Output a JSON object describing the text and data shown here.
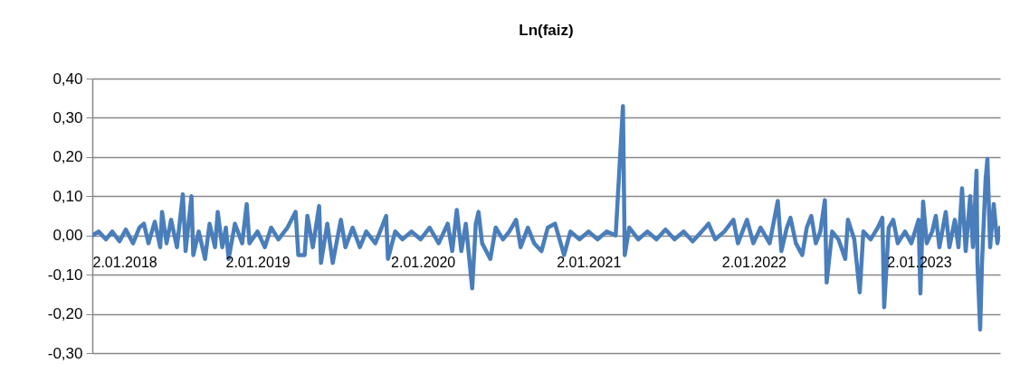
{
  "chart_data": {
    "type": "line",
    "title": "Ln(faiz)",
    "xlim": [
      "2018-01-02",
      "2023-06-30"
    ],
    "xticks": [
      {
        "value": "2018-01-02",
        "label": "2.01.2018"
      },
      {
        "value": "2019-01-02",
        "label": "2.01.2019"
      },
      {
        "value": "2020-01-02",
        "label": "2.01.2020"
      },
      {
        "value": "2021-01-02",
        "label": "2.01.2021"
      },
      {
        "value": "2022-01-02",
        "label": "2.01.2022"
      },
      {
        "value": "2023-01-02",
        "label": "2.01.2023"
      }
    ],
    "ylim": [
      -0.3,
      0.4
    ],
    "yticks": [
      {
        "value": -0.3,
        "label": "-0,30"
      },
      {
        "value": -0.2,
        "label": "-0,20"
      },
      {
        "value": -0.1,
        "label": "-0,10"
      },
      {
        "value": 0,
        "label": "0,00"
      },
      {
        "value": 0.1,
        "label": "0,10"
      },
      {
        "value": 0.2,
        "label": "0,20"
      },
      {
        "value": 0.3,
        "label": "0,30"
      },
      {
        "value": 0.4,
        "label": "0,40"
      }
    ],
    "grid": "y",
    "marker": "none",
    "line_style": "solid",
    "x": [
      "2018-01-02",
      "2018-01-16",
      "2018-02-01",
      "2018-02-15",
      "2018-03-03",
      "2018-03-17",
      "2018-04-02",
      "2018-04-16",
      "2018-04-26",
      "2018-05-06",
      "2018-05-20",
      "2018-06-01",
      "2018-06-05",
      "2018-06-15",
      "2018-06-25",
      "2018-07-08",
      "2018-07-21",
      "2018-07-27",
      "2018-08-09",
      "2018-08-13",
      "2018-08-25",
      "2018-09-08",
      "2018-09-18",
      "2018-09-30",
      "2018-10-06",
      "2018-10-16",
      "2018-10-24",
      "2018-10-30",
      "2018-11-13",
      "2018-11-29",
      "2018-12-09",
      "2018-12-15",
      "2019-01-02",
      "2019-01-18",
      "2019-02-01",
      "2019-02-17",
      "2019-03-09",
      "2019-03-27",
      "2019-04-02",
      "2019-04-16",
      "2019-04-22",
      "2019-05-04",
      "2019-05-18",
      "2019-05-22",
      "2019-06-05",
      "2019-06-17",
      "2019-07-05",
      "2019-07-15",
      "2019-07-31",
      "2019-08-16",
      "2019-08-30",
      "2019-09-19",
      "2019-10-03",
      "2019-10-13",
      "2019-10-17",
      "2019-11-02",
      "2019-11-18",
      "2019-12-08",
      "2019-12-28",
      "2020-01-17",
      "2020-02-06",
      "2020-02-26",
      "2020-03-07",
      "2020-03-17",
      "2020-03-27",
      "2020-04-06",
      "2020-04-20",
      "2020-04-28",
      "2020-05-04",
      "2020-05-12",
      "2020-05-30",
      "2020-06-11",
      "2020-06-27",
      "2020-07-11",
      "2020-07-26",
      "2020-08-05",
      "2020-08-21",
      "2020-09-04",
      "2020-09-20",
      "2020-10-04",
      "2020-10-20",
      "2020-10-30",
      "2020-11-09",
      "2020-11-23",
      "2020-12-13",
      "2021-01-02",
      "2021-01-22",
      "2021-02-11",
      "2021-03-03",
      "2021-03-19",
      "2021-03-23",
      "2021-04-02",
      "2021-04-22",
      "2021-05-12",
      "2021-06-01",
      "2021-06-21",
      "2021-07-11",
      "2021-07-31",
      "2021-08-20",
      "2021-09-09",
      "2021-09-24",
      "2021-10-09",
      "2021-10-29",
      "2021-11-18",
      "2021-11-28",
      "2021-12-18",
      "2022-01-01",
      "2022-01-17",
      "2022-02-06",
      "2022-02-24",
      "2022-03-04",
      "2022-03-16",
      "2022-03-24",
      "2022-04-05",
      "2022-04-19",
      "2022-04-29",
      "2022-05-09",
      "2022-05-19",
      "2022-05-29",
      "2022-06-08",
      "2022-06-12",
      "2022-06-24",
      "2022-07-08",
      "2022-07-23",
      "2022-07-29",
      "2022-08-12",
      "2022-08-24",
      "2022-09-01",
      "2022-09-17",
      "2022-10-03",
      "2022-10-13",
      "2022-10-17",
      "2022-10-27",
      "2022-11-06",
      "2022-11-16",
      "2022-12-02",
      "2022-12-16",
      "2023-01-01",
      "2023-01-05",
      "2023-01-11",
      "2023-01-19",
      "2023-01-31",
      "2023-02-08",
      "2023-02-16",
      "2023-03-02",
      "2023-03-10",
      "2023-03-22",
      "2023-03-30",
      "2023-04-07",
      "2023-04-15",
      "2023-04-25",
      "2023-05-01",
      "2023-05-09",
      "2023-05-11",
      "2023-05-17",
      "2023-05-21",
      "2023-05-29",
      "2023-06-02",
      "2023-06-08",
      "2023-06-16",
      "2023-06-24",
      "2023-06-30"
    ],
    "series": [
      {
        "color": "#4a7ebb",
        "values": [
          0.0,
          0.01,
          -0.01,
          0.01,
          -0.015,
          0.015,
          -0.02,
          0.02,
          0.03,
          -0.02,
          0.035,
          -0.03,
          0.06,
          -0.02,
          0.04,
          -0.03,
          0.105,
          -0.04,
          0.1,
          -0.05,
          0.01,
          -0.06,
          0.03,
          -0.03,
          0.06,
          -0.03,
          0.02,
          -0.06,
          0.03,
          -0.02,
          0.08,
          -0.02,
          0.01,
          -0.03,
          0.02,
          -0.01,
          0.02,
          0.06,
          -0.05,
          -0.05,
          0.05,
          -0.03,
          0.075,
          -0.07,
          0.03,
          -0.07,
          0.04,
          -0.03,
          0.02,
          -0.03,
          0.01,
          -0.02,
          0.02,
          0.05,
          -0.06,
          0.01,
          -0.01,
          0.01,
          -0.01,
          0.02,
          -0.02,
          0.03,
          -0.04,
          0.065,
          -0.04,
          0.03,
          -0.135,
          0.03,
          0.06,
          -0.02,
          -0.06,
          0.02,
          -0.01,
          0.01,
          0.04,
          -0.03,
          0.02,
          -0.02,
          -0.04,
          0.02,
          0.03,
          -0.01,
          -0.05,
          0.01,
          -0.01,
          0.01,
          -0.01,
          0.01,
          0.0,
          0.33,
          -0.05,
          0.02,
          -0.01,
          0.01,
          -0.01,
          0.015,
          -0.01,
          0.01,
          -0.015,
          0.01,
          0.03,
          -0.01,
          0.01,
          0.04,
          -0.02,
          0.04,
          -0.02,
          0.02,
          -0.02,
          0.088,
          -0.04,
          0.02,
          0.045,
          -0.02,
          -0.05,
          0.02,
          0.05,
          -0.02,
          0.01,
          0.09,
          -0.12,
          0.01,
          -0.01,
          -0.06,
          0.04,
          -0.01,
          -0.145,
          0.01,
          -0.01,
          0.02,
          0.045,
          -0.183,
          0.02,
          0.04,
          -0.02,
          0.01,
          -0.02,
          0.04,
          -0.148,
          0.086,
          -0.02,
          0.01,
          0.05,
          -0.03,
          0.06,
          -0.03,
          0.04,
          -0.03,
          0.12,
          -0.04,
          0.1,
          -0.03,
          0.165,
          -0.07,
          -0.24,
          -0.07,
          0.143,
          0.195,
          -0.03,
          0.08,
          -0.02,
          0.02
        ]
      }
    ]
  }
}
